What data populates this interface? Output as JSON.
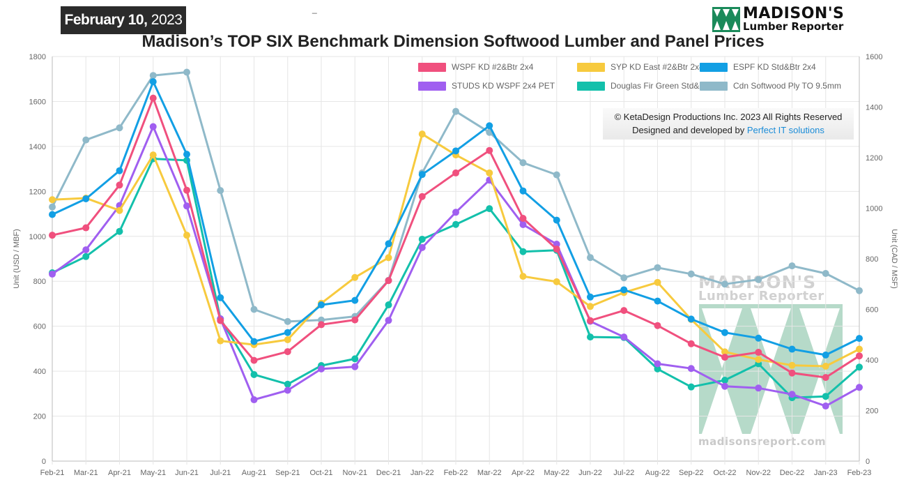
{
  "header": {
    "date_bold": "February 10,",
    "date_year": "2023",
    "stray_mark": "_",
    "logo_main": "MADISON'S",
    "logo_sub": "Lumber Reporter"
  },
  "copyright": {
    "line1": "© KetaDesign Productions Inc. 2023 All Rights Reserved",
    "line2_prefix": "Designed and developed by",
    "line2_link": "Perfect IT solutions"
  },
  "watermark": {
    "line1": "MADISON'S",
    "line2": "Lumber Reporter",
    "url": "madisonsreport.com"
  },
  "colors": {
    "wspf": "#f0507e",
    "syp": "#f7ca3e",
    "espf": "#129fe4",
    "studs": "#a05ff0",
    "dfir": "#13c0ab",
    "ply": "#8fb9c9",
    "logo_green": "#1a8a5a"
  },
  "chart_data": {
    "type": "line",
    "title": "Madison’s TOP SIX Benchmark Dimension Softwood Lumber and Panel Prices",
    "categories": [
      "Feb-21",
      "Mar-21",
      "Apr-21",
      "May-21",
      "Jun-21",
      "Jul-21",
      "Aug-21",
      "Sep-21",
      "Oct-21",
      "Nov-21",
      "Dec-21",
      "Jan-22",
      "Feb-22",
      "Mar-22",
      "Apr-22",
      "May-22",
      "Jun-22",
      "Jul-22",
      "Aug-22",
      "Sep-22",
      "Oct-22",
      "Nov-22",
      "Dec-22",
      "Jan-23",
      "Feb-23"
    ],
    "ylabel": "Unit (USD / MBF)",
    "y2label": "Unit (CAD / MSF)",
    "ylim": [
      0,
      1800
    ],
    "y2lim": [
      0,
      1600
    ],
    "yticks": [
      "0",
      "200",
      "400",
      "600",
      "800",
      "1000",
      "1200",
      "1400",
      "1600",
      "1800"
    ],
    "y2ticks": [
      "0",
      "200",
      "400",
      "600",
      "800",
      "1000",
      "1200",
      "1400",
      "1600"
    ],
    "grid": true,
    "legend_position": "top-right",
    "series": [
      {
        "name": "WSPF KD #2&Btr 2x4",
        "color_key": "wspf",
        "axis": "left",
        "values": [
          1005,
          1038,
          1228,
          1615,
          1205,
          625,
          448,
          487,
          607,
          628,
          803,
          1177,
          1282,
          1382,
          1080,
          943,
          625,
          670,
          603,
          522,
          462,
          484,
          392,
          372,
          468
        ]
      },
      {
        "name": "SYP KD East #2&Btr 2x4",
        "color_key": "syp",
        "axis": "left",
        "values": [
          1163,
          1170,
          1115,
          1362,
          1005,
          535,
          518,
          540,
          702,
          817,
          905,
          1455,
          1362,
          1282,
          822,
          798,
          688,
          750,
          795,
          630,
          486,
          452,
          426,
          422,
          498
        ]
      },
      {
        "name": "ESPF KD Std&Btr 2x4",
        "color_key": "espf",
        "axis": "left",
        "values": [
          1097,
          1167,
          1292,
          1688,
          1365,
          727,
          532,
          572,
          695,
          715,
          967,
          1275,
          1380,
          1492,
          1202,
          1072,
          730,
          762,
          712,
          632,
          572,
          547,
          498,
          472,
          546
        ]
      },
      {
        "name": "STUDS KD WSPF 2x4 PET",
        "color_key": "studs",
        "axis": "left",
        "values": [
          832,
          940,
          1137,
          1488,
          1135,
          633,
          273,
          315,
          410,
          420,
          626,
          950,
          1107,
          1250,
          1052,
          965,
          622,
          552,
          433,
          412,
          333,
          325,
          297,
          245,
          328
        ]
      },
      {
        "name": "Douglas Fir Green Std&Btr 2x4",
        "color_key": "dfir",
        "axis": "left",
        "values": [
          838,
          910,
          1022,
          1345,
          1338,
          633,
          385,
          342,
          425,
          455,
          695,
          987,
          1053,
          1123,
          932,
          938,
          552,
          550,
          410,
          330,
          360,
          433,
          282,
          288,
          418
        ]
      },
      {
        "name": "Cdn Softwood Ply TO 9.5mm",
        "color_key": "ply",
        "axis": "right",
        "values": [
          1005,
          1270,
          1318,
          1525,
          1538,
          1070,
          600,
          552,
          558,
          572,
          715,
          1140,
          1383,
          1300,
          1180,
          1132,
          805,
          725,
          765,
          740,
          700,
          718,
          772,
          742,
          674
        ]
      }
    ]
  }
}
